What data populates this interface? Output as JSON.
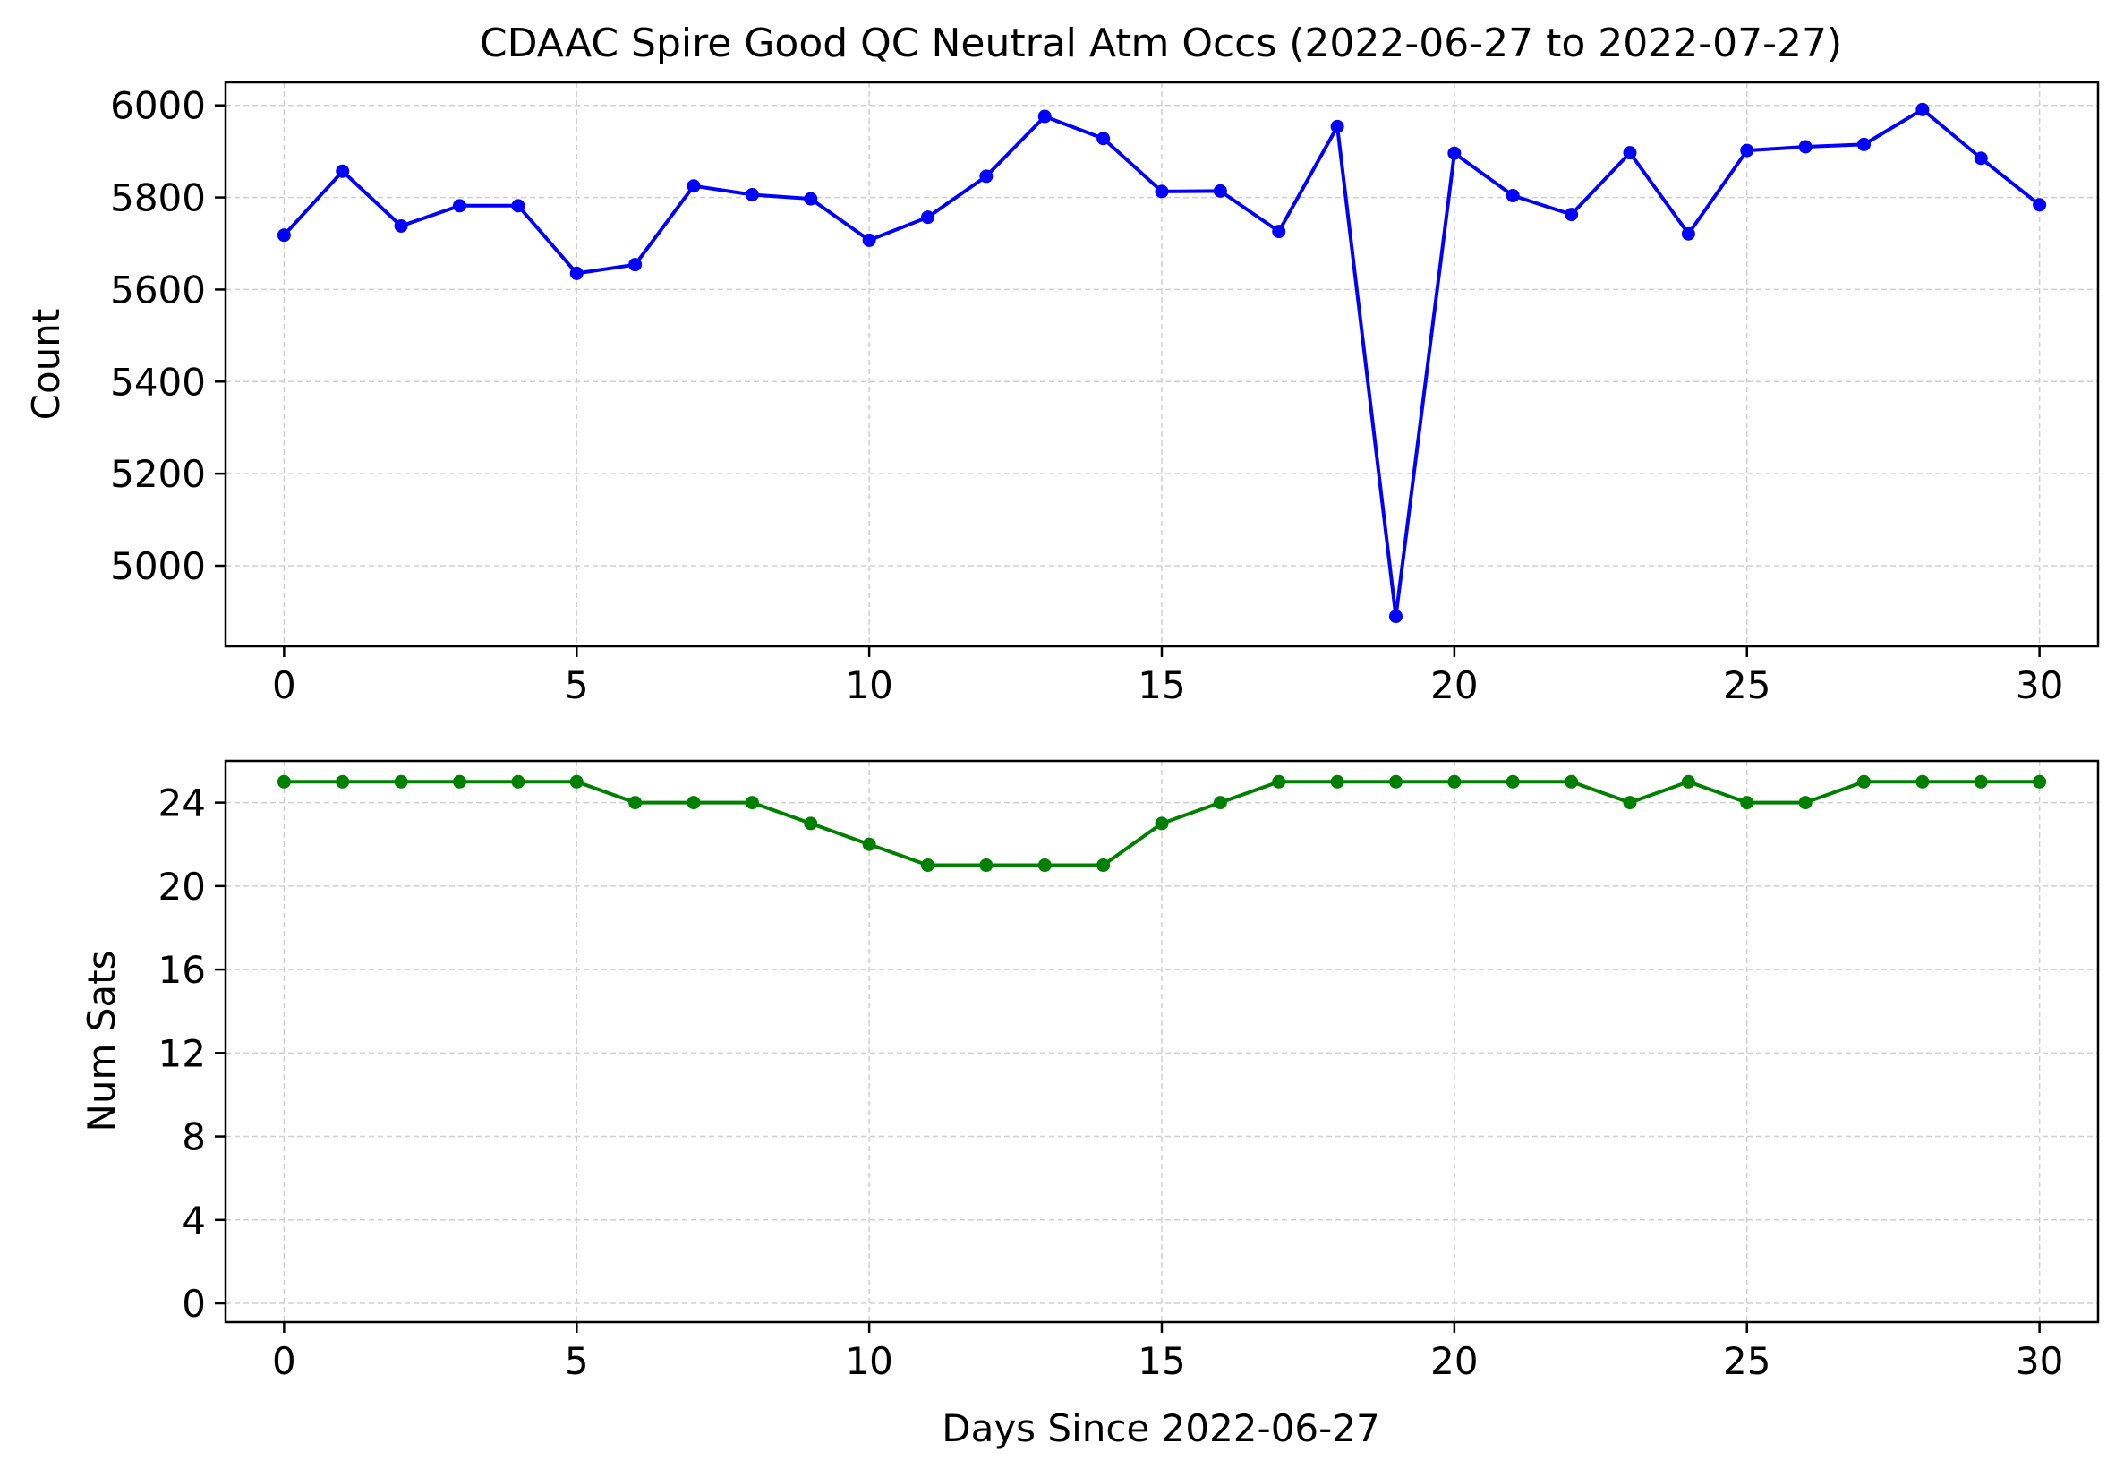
{
  "chart_data": [
    {
      "type": "line",
      "title": "CDAAC Spire Good QC Neutral Atm Occs (2022-06-27 to 2022-07-27)",
      "xlabel": "",
      "ylabel": "Count",
      "xlim": [
        -1,
        31
      ],
      "ylim": [
        4825,
        6050
      ],
      "xticks": [
        0,
        5,
        10,
        15,
        20,
        25,
        30
      ],
      "yticks": [
        5000,
        5200,
        5400,
        5600,
        5800,
        6000
      ],
      "grid": true,
      "series": [
        {
          "color": "#0000ff",
          "marker": "circle",
          "x": [
            0,
            1,
            2,
            3,
            4,
            5,
            6,
            7,
            8,
            9,
            10,
            11,
            12,
            13,
            14,
            15,
            16,
            17,
            18,
            19,
            20,
            21,
            22,
            23,
            24,
            25,
            26,
            27,
            28,
            29,
            30
          ],
          "values": [
            5718,
            5857,
            5738,
            5782,
            5782,
            5635,
            5654,
            5825,
            5806,
            5797,
            5707,
            5757,
            5846,
            5976,
            5928,
            5813,
            5814,
            5726,
            5954,
            4890,
            5896,
            5804,
            5763,
            5897,
            5721,
            5902,
            5910,
            5915,
            5991,
            5885,
            5784
          ]
        }
      ]
    },
    {
      "type": "line",
      "title": "",
      "xlabel": "Days Since 2022-06-27",
      "ylabel": "Num Sats",
      "xlim": [
        -1,
        31
      ],
      "ylim": [
        -0.9,
        26
      ],
      "xticks": [
        0,
        5,
        10,
        15,
        20,
        25,
        30
      ],
      "yticks": [
        0,
        4,
        8,
        12,
        16,
        20,
        24
      ],
      "grid": true,
      "series": [
        {
          "color": "#008000",
          "marker": "circle",
          "x": [
            0,
            1,
            2,
            3,
            4,
            5,
            6,
            7,
            8,
            9,
            10,
            11,
            12,
            13,
            14,
            15,
            16,
            17,
            18,
            19,
            20,
            21,
            22,
            23,
            24,
            25,
            26,
            27,
            28,
            29,
            30
          ],
          "values": [
            25,
            25,
            25,
            25,
            25,
            25,
            24,
            24,
            24,
            23,
            22,
            21,
            21,
            21,
            21,
            23,
            24,
            25,
            25,
            25,
            25,
            25,
            25,
            24,
            25,
            24,
            24,
            25,
            25,
            25,
            25
          ]
        }
      ]
    }
  ]
}
